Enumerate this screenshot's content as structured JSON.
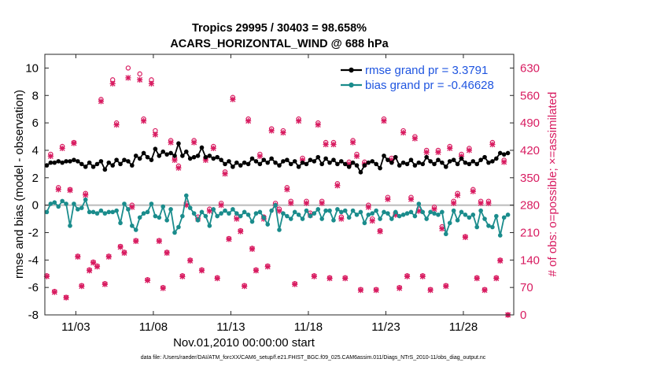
{
  "chart_data": {
    "type": "line",
    "title": "Tropics 29995 / 30403 = 98.658%",
    "subtitle": "ACARS_HORIZONTAL_WIND @ 688 hPa",
    "xlabel": "Nov.01,2010 00:00:00 start",
    "ylabel": "rmse and bias (model - observation)",
    "y2label": "# of obs: o=possible; ×=assimilated",
    "footer": "data file: /Users/raeder/DAI/ATM_forcXX/CAM6_setup/f.e21.FHIST_BGC.f09_025.CAM6assim.011/Diags_NTrS_2010-11/obs_diag_output.nc",
    "xlim": [
      1.0,
      31.25
    ],
    "ylim": [
      -8,
      11
    ],
    "y2lim": [
      0,
      665
    ],
    "xticks": [
      3,
      8,
      13,
      18,
      23,
      28
    ],
    "xtick_labels": [
      "11/03",
      "11/08",
      "11/13",
      "11/18",
      "11/23",
      "11/28"
    ],
    "yticks": [
      -8,
      -6,
      -4,
      -2,
      0,
      2,
      4,
      6,
      8,
      10
    ],
    "y2ticks": [
      0,
      70,
      140,
      210,
      280,
      350,
      420,
      490,
      560,
      630
    ],
    "colors": {
      "rmse": "#000000",
      "bias": "#1a8c8c",
      "obs": "#d81b60",
      "zero": "#bbbbbb",
      "legend_text": "#1f55e0"
    },
    "x": [
      1.125,
      1.375,
      1.625,
      1.875,
      2.125,
      2.375,
      2.625,
      2.875,
      3.125,
      3.375,
      3.625,
      3.875,
      4.125,
      4.375,
      4.625,
      4.875,
      5.125,
      5.375,
      5.625,
      5.875,
      6.125,
      6.375,
      6.625,
      6.875,
      7.125,
      7.375,
      7.625,
      7.875,
      8.125,
      8.375,
      8.625,
      8.875,
      9.125,
      9.375,
      9.625,
      9.875,
      10.125,
      10.375,
      10.625,
      10.875,
      11.125,
      11.375,
      11.625,
      11.875,
      12.125,
      12.375,
      12.625,
      12.875,
      13.125,
      13.375,
      13.625,
      13.875,
      14.125,
      14.375,
      14.625,
      14.875,
      15.125,
      15.375,
      15.625,
      15.875,
      16.125,
      16.375,
      16.625,
      16.875,
      17.125,
      17.375,
      17.625,
      17.875,
      18.125,
      18.375,
      18.625,
      18.875,
      19.125,
      19.375,
      19.625,
      19.875,
      20.125,
      20.375,
      20.625,
      20.875,
      21.125,
      21.375,
      21.625,
      21.875,
      22.125,
      22.375,
      22.625,
      22.875,
      23.125,
      23.375,
      23.625,
      23.875,
      24.125,
      24.375,
      24.625,
      24.875,
      25.125,
      25.375,
      25.625,
      25.875,
      26.125,
      26.375,
      26.625,
      26.875,
      27.125,
      27.375,
      27.625,
      27.875,
      28.125,
      28.375,
      28.625,
      28.875,
      29.125,
      29.375,
      29.625,
      29.875,
      30.125,
      30.375,
      30.625,
      30.875
    ],
    "series": [
      {
        "name": "rmse grand pr = 3.3791",
        "marker": "dot",
        "values": [
          2.9,
          3.1,
          3.1,
          3.2,
          3.1,
          3.2,
          3.2,
          3.3,
          3.2,
          3.0,
          2.8,
          3.1,
          2.8,
          3.0,
          3.2,
          2.6,
          3.1,
          2.9,
          3.3,
          3.0,
          3.3,
          3.2,
          2.9,
          3.6,
          3.4,
          3.8,
          3.5,
          3.3,
          4.1,
          3.6,
          3.9,
          3.7,
          3.8,
          3.6,
          4.5,
          3.6,
          3.9,
          3.4,
          3.5,
          3.6,
          4.2,
          3.5,
          3.6,
          3.4,
          3.5,
          3.3,
          3.0,
          3.2,
          2.8,
          3.1,
          2.9,
          3.1,
          3.0,
          3.4,
          3.2,
          3.0,
          3.3,
          3.1,
          3.4,
          3.1,
          2.9,
          3.2,
          3.3,
          3.0,
          3.2,
          2.8,
          3.1,
          3.0,
          3.3,
          3.2,
          3.5,
          3.0,
          3.4,
          3.1,
          3.3,
          3.0,
          3.2,
          3.0,
          2.8,
          3.1,
          2.9,
          2.4,
          2.9,
          3.1,
          3.2,
          3.0,
          2.7,
          3.6,
          3.3,
          3.1,
          3.5,
          2.9,
          3.1,
          3.0,
          3.3,
          2.9,
          3.1,
          3.0,
          3.5,
          3.2,
          3.0,
          3.3,
          3.1,
          2.8,
          3.2,
          3.3,
          3.0,
          3.4,
          3.1,
          3.0,
          3.2,
          3.0,
          3.3,
          3.5,
          3.1,
          3.2,
          3.4,
          3.8,
          3.7,
          3.8
        ]
      },
      {
        "name": "bias grand pr = -0.46628",
        "marker": "dot",
        "values": [
          -0.5,
          0.1,
          0.2,
          -0.1,
          0.3,
          0.1,
          -1.5,
          0.1,
          -0.3,
          -0.2,
          0.4,
          -0.5,
          -0.5,
          -0.6,
          -0.4,
          -0.6,
          -0.5,
          -0.5,
          -0.4,
          -1.3,
          0.1,
          -0.3,
          -1.5,
          -1.8,
          -0.9,
          -0.6,
          -0.5,
          0.1,
          -0.8,
          -0.9,
          -0.1,
          -1.1,
          -0.3,
          -2.0,
          -1.6,
          -0.8,
          0.7,
          -0.2,
          -0.6,
          -1.1,
          -0.5,
          -0.8,
          -1.5,
          -0.3,
          -0.8,
          -0.6,
          -0.4,
          -0.6,
          -0.3,
          -0.6,
          -0.8,
          -0.5,
          -0.7,
          -1.2,
          -0.6,
          -0.5,
          -0.9,
          -1.4,
          -0.4,
          0.0,
          -1.8,
          -0.6,
          -0.8,
          -1.0,
          -0.5,
          -0.7,
          -1.0,
          -0.4,
          -0.8,
          -0.6,
          -0.3,
          -1.0,
          -0.4,
          -0.4,
          -1.1,
          -0.3,
          -0.5,
          -0.4,
          -0.9,
          -0.4,
          -0.7,
          -0.5,
          -1.3,
          -0.7,
          -0.6,
          -0.4,
          -1.0,
          -0.5,
          -0.6,
          -1.0,
          -0.5,
          -0.8,
          -0.7,
          -0.6,
          -0.5,
          -0.8,
          0.1,
          -0.5,
          -1.0,
          -0.5,
          -0.6,
          -0.7,
          -0.5,
          -2.1,
          -1.3,
          -0.4,
          -1.1,
          -0.5,
          -0.7,
          -0.9,
          -0.7,
          -1.6,
          -0.4,
          -1.0,
          -1.5,
          -1.6,
          -0.8,
          -2.2,
          -0.9,
          -0.7
        ]
      }
    ],
    "obs_possible": [
      100,
      410,
      60,
      325,
      430,
      45,
      320,
      440,
      150,
      75,
      310,
      115,
      135,
      125,
      550,
      80,
      150,
      600,
      490,
      175,
      160,
      630,
      280,
      190,
      615,
      500,
      90,
      600,
      470,
      190,
      70,
      160,
      445,
      400,
      380,
      100,
      285,
      140,
      445,
      250,
      115,
      400,
      270,
      430,
      95,
      285,
      365,
      195,
      555,
      250,
      215,
      75,
      500,
      170,
      115,
      410,
      250,
      125,
      475,
      285,
      270,
      470,
      325,
      290,
      80,
      500,
      400,
      290,
      260,
      100,
      490,
      290,
      440,
      95,
      440,
      335,
      250,
      95,
      390,
      445,
      410,
      65,
      390,
      280,
      245,
      65,
      215,
      500,
      300,
      400,
      260,
      70,
      470,
      100,
      300,
      455,
      270,
      100,
      420,
      65,
      275,
      420,
      225,
      75,
      430,
      290,
      310,
      410,
      200,
      425,
      320,
      95,
      290,
      65,
      290,
      440,
      95,
      140,
      395,
      0
    ],
    "obs_assimilated": [
      98,
      405,
      58,
      320,
      425,
      44,
      318,
      438,
      148,
      73,
      306,
      113,
      133,
      123,
      545,
      78,
      148,
      590,
      485,
      173,
      158,
      605,
      275,
      188,
      600,
      495,
      88,
      590,
      460,
      188,
      68,
      158,
      440,
      395,
      375,
      98,
      280,
      138,
      440,
      245,
      113,
      395,
      265,
      425,
      93,
      280,
      360,
      193,
      550,
      245,
      213,
      73,
      495,
      168,
      113,
      405,
      245,
      123,
      470,
      280,
      265,
      465,
      320,
      285,
      78,
      495,
      395,
      285,
      255,
      98,
      485,
      285,
      435,
      93,
      435,
      330,
      245,
      93,
      385,
      440,
      405,
      63,
      385,
      275,
      240,
      63,
      213,
      495,
      295,
      395,
      255,
      68,
      465,
      98,
      295,
      450,
      265,
      98,
      415,
      63,
      270,
      415,
      220,
      73,
      425,
      285,
      305,
      405,
      198,
      420,
      315,
      93,
      285,
      63,
      285,
      435,
      93,
      138,
      390,
      0
    ]
  }
}
